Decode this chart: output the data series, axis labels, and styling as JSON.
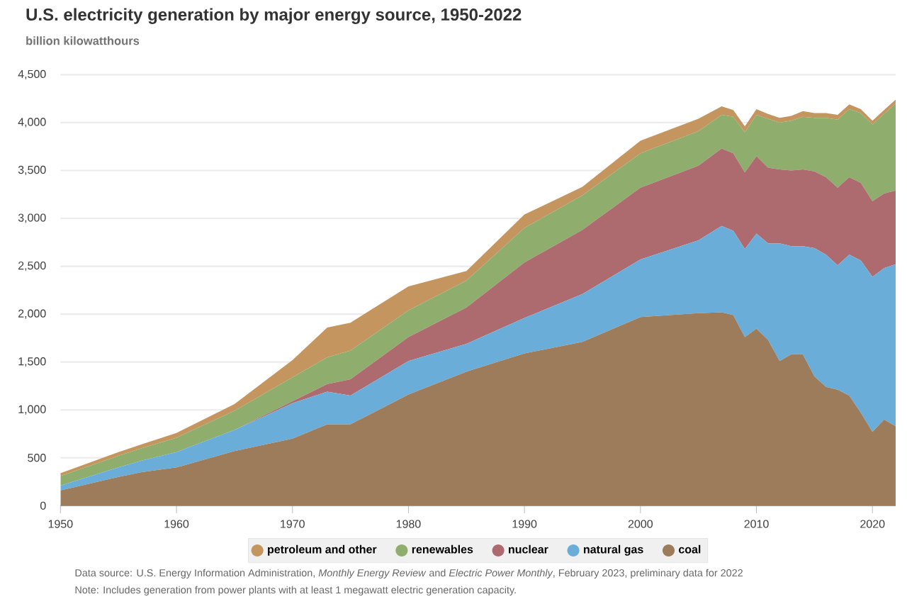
{
  "chart_data": {
    "type": "area",
    "title": "U.S. electricity generation by major energy source, 1950-2022",
    "subtitle": "billion kilowatthours",
    "x": [
      1950,
      1955,
      1957,
      1960,
      1965,
      1970,
      1973,
      1975,
      1980,
      1985,
      1990,
      1995,
      2000,
      2005,
      2007,
      2008,
      2009,
      2010,
      2011,
      2012,
      2013,
      2014,
      2015,
      2016,
      2017,
      2018,
      2019,
      2020,
      2021,
      2022
    ],
    "stacked": true,
    "series": [
      {
        "name": "coal",
        "color": "#9c7c5a",
        "values": [
          160,
          300,
          350,
          400,
          570,
          700,
          850,
          850,
          1160,
          1400,
          1590,
          1710,
          1970,
          2010,
          2020,
          1990,
          1760,
          1850,
          1730,
          1510,
          1580,
          1580,
          1350,
          1240,
          1210,
          1150,
          970,
          770,
          900,
          830
        ]
      },
      {
        "name": "natural gas",
        "color": "#6badd9",
        "values": [
          50,
          100,
          120,
          160,
          220,
          370,
          340,
          300,
          350,
          290,
          370,
          500,
          600,
          760,
          900,
          880,
          920,
          990,
          1010,
          1230,
          1130,
          1130,
          1340,
          1380,
          1300,
          1470,
          1590,
          1620,
          1580,
          1690
        ]
      },
      {
        "name": "nuclear",
        "color": "#ad6b70",
        "values": [
          0,
          0,
          0,
          0,
          0,
          20,
          80,
          170,
          250,
          380,
          580,
          670,
          750,
          780,
          810,
          810,
          800,
          810,
          790,
          770,
          790,
          800,
          800,
          810,
          810,
          810,
          810,
          790,
          780,
          770
        ]
      },
      {
        "name": "renewables",
        "color": "#8fad6c",
        "values": [
          100,
          120,
          130,
          150,
          200,
          250,
          280,
          300,
          280,
          280,
          360,
          360,
          360,
          360,
          350,
          380,
          420,
          430,
          510,
          490,
          520,
          550,
          560,
          620,
          710,
          710,
          730,
          800,
          830,
          910
        ]
      },
      {
        "name": "petroleum and other",
        "color": "#c4955e",
        "values": [
          30,
          40,
          40,
          50,
          70,
          180,
          310,
          290,
          250,
          100,
          140,
          90,
          130,
          130,
          90,
          70,
          60,
          60,
          50,
          50,
          50,
          60,
          50,
          50,
          50,
          50,
          40,
          40,
          40,
          40
        ]
      }
    ],
    "xlim": [
      1950,
      2022
    ],
    "xticks": [
      1950,
      1960,
      1970,
      1980,
      1990,
      2000,
      2010,
      2020
    ],
    "ylim": [
      0,
      4500
    ],
    "yticks": [
      {
        "value": 0,
        "label": "0"
      },
      {
        "value": 500,
        "label": "500"
      },
      {
        "value": 1000,
        "label": "1,000"
      },
      {
        "value": 1500,
        "label": "1,500"
      },
      {
        "value": 2000,
        "label": "2,000"
      },
      {
        "value": 2500,
        "label": "2,500"
      },
      {
        "value": 3000,
        "label": "3,000"
      },
      {
        "value": 3500,
        "label": "3,500"
      },
      {
        "value": 4000,
        "label": "4,000"
      },
      {
        "value": 4500,
        "label": "4,500"
      }
    ],
    "grid": "y",
    "legend": "bottom",
    "annotations": [
      "Data source: U.S. Energy Information Administration, *Monthly Energy Review* and *Electric Power Monthly*, February 2023, preliminary data for 2022",
      "Note: Includes generation from power plants with at least 1 megawatt electric generation capacity."
    ]
  }
}
